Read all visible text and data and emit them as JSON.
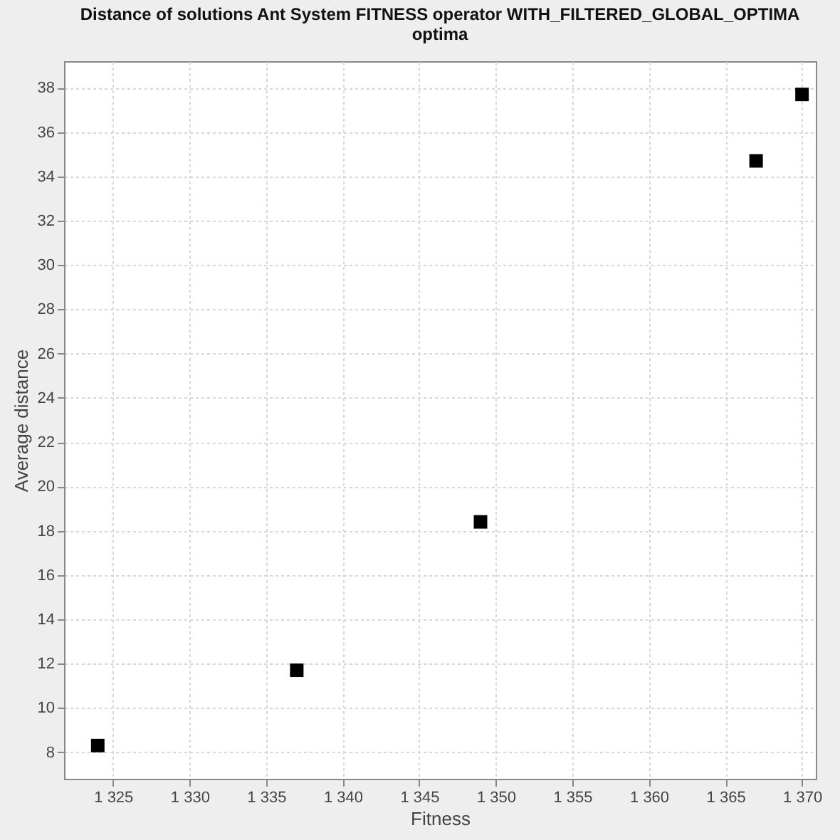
{
  "chart_data": {
    "type": "scatter",
    "title": "Distance of solutions Ant System FITNESS operator WITH_FILTERED_GLOBAL_OPTIMA\noptima",
    "xlabel": "Fitness",
    "ylabel": "Average distance",
    "x": [
      1324,
      1337,
      1349,
      1367,
      1370
    ],
    "series": [
      {
        "color": "#000000",
        "values": [
          8.3,
          11.7,
          18.4,
          34.7,
          37.7
        ]
      }
    ],
    "xlim": [
      1321.8,
      1370.9
    ],
    "ylim": [
      6.8,
      39.2
    ],
    "xticks": [
      {
        "value": 1325,
        "label": "1 325"
      },
      {
        "value": 1330,
        "label": "1 330"
      },
      {
        "value": 1335,
        "label": "1 335"
      },
      {
        "value": 1340,
        "label": "1 340"
      },
      {
        "value": 1345,
        "label": "1 345"
      },
      {
        "value": 1350,
        "label": "1 350"
      },
      {
        "value": 1355,
        "label": "1 355"
      },
      {
        "value": 1360,
        "label": "1 360"
      },
      {
        "value": 1365,
        "label": "1 365"
      },
      {
        "value": 1370,
        "label": "1 370"
      }
    ],
    "yticks": [
      8,
      10,
      12,
      14,
      16,
      18,
      20,
      22,
      24,
      26,
      28,
      30,
      32,
      34,
      36,
      38
    ],
    "grid": true,
    "marker": "square"
  }
}
